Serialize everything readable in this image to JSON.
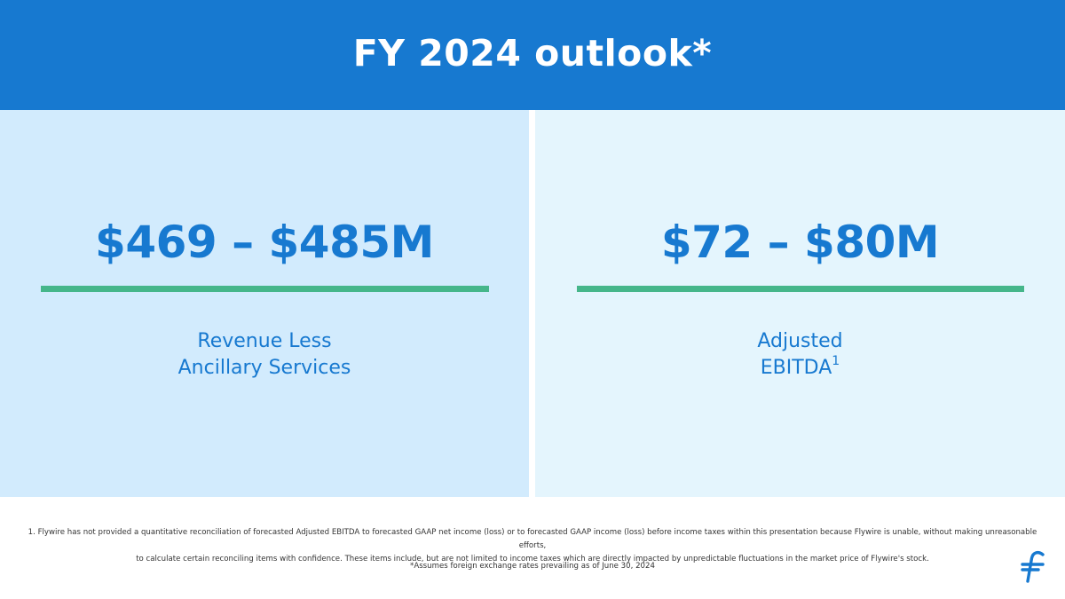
{
  "header": {
    "title": "FY 2024 outlook*"
  },
  "metrics": [
    {
      "value": "$469 – $485M",
      "label_line1": "Revenue Less",
      "label_line2": "Ancillary Services",
      "footnote_ref": ""
    },
    {
      "value": "$72 – $80M",
      "label_line1": "Adjusted",
      "label_line2": "EBITDA",
      "footnote_ref": "1"
    }
  ],
  "footnotes": {
    "note1_line1": "1. Flywire has not provided a quantitative reconciliation of forecasted Adjusted EBITDA to forecasted GAAP net income (loss) or to forecasted GAAP income (loss) before income taxes within this presentation because Flywire is unable, without making unreasonable efforts,",
    "note1_line2": "to calculate certain reconciling items with confidence. These items include, but are not limited to income taxes which are directly impacted by unpredictable fluctuations in the market price of Flywire's stock.",
    "assumption": "*Assumes foreign exchange rates prevailing as of June 30, 2024"
  },
  "colors": {
    "brand_blue": "#1779d0",
    "panel_left": "#d2ebfd",
    "panel_right": "#e4f5fd",
    "accent_green": "#45b68a"
  },
  "logo": {
    "icon": "flywire-logo-icon"
  }
}
